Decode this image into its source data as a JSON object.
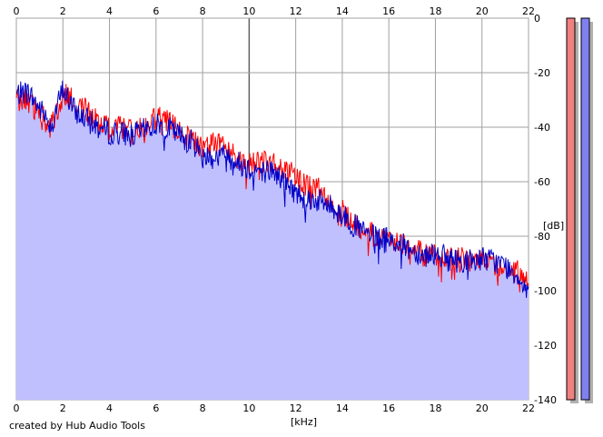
{
  "footer_text": "created by Hub Audio Tools",
  "colors": {
    "left_channel": "#ff0000",
    "right_channel": "#0000c8",
    "fill": "#c0c0ff",
    "left_meter": "#f08080",
    "right_meter": "#8080f0"
  },
  "chart_data": {
    "type": "line",
    "title": "",
    "xlabel": "[kHz]",
    "ylabel": "[dB]",
    "xlim": [
      0,
      22
    ],
    "ylim": [
      -140,
      0
    ],
    "x_ticks": [
      "0",
      "2",
      "4",
      "6",
      "8",
      "10",
      "12",
      "14",
      "16",
      "18",
      "20",
      "22"
    ],
    "y_ticks": [
      "0",
      "-20",
      "-40",
      "-60",
      "-80",
      "-100",
      "-120",
      "-140"
    ],
    "grid": true,
    "x_tick_position": "top and bottom",
    "y_tick_position": "right",
    "series": [
      {
        "color": "#ff0000",
        "x": [
          0,
          0.5,
          1,
          1.5,
          2,
          2.5,
          3,
          3.5,
          4,
          4.5,
          5,
          5.5,
          6,
          6.5,
          7,
          7.5,
          8,
          8.5,
          9,
          9.5,
          10,
          10.5,
          11,
          11.5,
          12,
          12.5,
          13,
          13.5,
          14,
          14.5,
          15,
          15.5,
          16,
          16.5,
          17,
          17.5,
          18,
          18.5,
          19,
          19.5,
          20,
          20.5,
          21,
          21.5,
          22
        ],
        "values": [
          -30,
          -30,
          -35,
          -40,
          -28,
          -30,
          -33,
          -37,
          -41,
          -40,
          -42,
          -40,
          -36,
          -38,
          -42,
          -44,
          -48,
          -46,
          -46,
          -52,
          -54,
          -53,
          -53,
          -55,
          -58,
          -62,
          -63,
          -66,
          -71,
          -75,
          -78,
          -80,
          -81,
          -82,
          -84,
          -87,
          -87,
          -88,
          -88,
          -89,
          -88,
          -90,
          -92,
          -93,
          -98
        ]
      },
      {
        "color": "#0000c8",
        "x": [
          0,
          0.5,
          1,
          1.5,
          2,
          2.5,
          3,
          3.5,
          4,
          4.5,
          5,
          5.5,
          6,
          6.5,
          7,
          7.5,
          8,
          8.5,
          9,
          9.5,
          10,
          10.5,
          11,
          11.5,
          12,
          12.5,
          13,
          13.5,
          14,
          14.5,
          15,
          15.5,
          16,
          16.5,
          17,
          17.5,
          18,
          18.5,
          19,
          19.5,
          20,
          20.5,
          21,
          21.5,
          22
        ],
        "values": [
          -28,
          -27,
          -33,
          -39,
          -26,
          -34,
          -37,
          -40,
          -42,
          -42,
          -43,
          -41,
          -39,
          -40,
          -43,
          -45,
          -50,
          -51,
          -50,
          -53,
          -55,
          -56,
          -56,
          -60,
          -64,
          -66,
          -67,
          -69,
          -72,
          -76,
          -79,
          -81,
          -81,
          -83,
          -85,
          -87,
          -86,
          -88,
          -89,
          -89,
          -88,
          -89,
          -91,
          -94,
          -100
        ]
      }
    ]
  }
}
